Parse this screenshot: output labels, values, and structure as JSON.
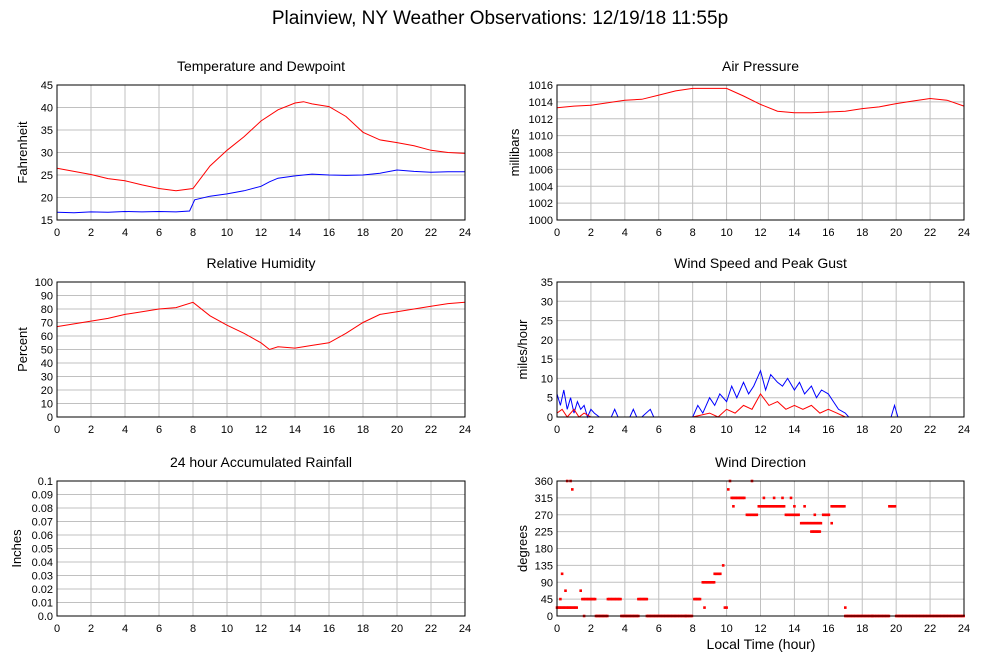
{
  "page": {
    "title": "Plainview, NY Weather Observations: 12/19/18 11:55p",
    "shared_xlabel": "Local Time (hour)"
  },
  "colors": {
    "red": "#ff0000",
    "blue": "#0000ff",
    "grid": "#c0c0c0",
    "frame": "#000000"
  },
  "chart_data": [
    {
      "id": "temperature",
      "type": "line",
      "title": "Temperature and Dewpoint",
      "xlabel": "",
      "ylabel": "Fahrenheit",
      "xlim": [
        0,
        24
      ],
      "ylim": [
        15,
        45
      ],
      "xticks": [
        0,
        2,
        4,
        6,
        8,
        10,
        12,
        14,
        16,
        18,
        20,
        22,
        24
      ],
      "yticks": [
        15,
        20,
        25,
        30,
        35,
        40,
        45
      ],
      "ytick_labels": [
        "15",
        "20",
        "25",
        "30",
        "35",
        "40",
        "45"
      ],
      "grid": true,
      "series": [
        {
          "color": "#ff0000",
          "x": [
            0,
            1,
            2,
            3,
            4,
            5,
            6,
            7,
            8,
            9,
            10,
            11,
            12,
            13,
            14,
            14.5,
            15,
            16,
            17,
            18,
            19,
            20,
            21,
            22,
            23,
            24
          ],
          "y": [
            26.5,
            25.8,
            25.1,
            24.2,
            23.7,
            22.8,
            22.0,
            21.5,
            22.0,
            27.0,
            30.5,
            33.5,
            37.0,
            39.5,
            41.0,
            41.3,
            40.8,
            40.2,
            38.0,
            34.5,
            32.8,
            32.2,
            31.5,
            30.5,
            30.0,
            29.8
          ]
        },
        {
          "color": "#0000ff",
          "x": [
            0,
            1,
            2,
            3,
            4,
            5,
            6,
            7,
            7.8,
            8.1,
            9,
            10,
            11,
            12,
            12.5,
            13,
            14,
            15,
            16,
            17,
            18,
            19,
            20,
            21,
            22,
            23,
            24
          ],
          "y": [
            16.7,
            16.6,
            16.8,
            16.7,
            16.9,
            16.8,
            16.9,
            16.8,
            17.0,
            19.5,
            20.3,
            20.8,
            21.5,
            22.5,
            23.5,
            24.3,
            24.8,
            25.2,
            25.0,
            24.9,
            25.0,
            25.4,
            26.1,
            25.8,
            25.6,
            25.7,
            25.7
          ]
        }
      ]
    },
    {
      "id": "pressure",
      "type": "line",
      "title": "Air Pressure",
      "xlabel": "",
      "ylabel": "millibars",
      "xlim": [
        0,
        24
      ],
      "ylim": [
        1000,
        1016
      ],
      "xticks": [
        0,
        2,
        4,
        6,
        8,
        10,
        12,
        14,
        16,
        18,
        20,
        22,
        24
      ],
      "yticks": [
        1000,
        1002,
        1004,
        1006,
        1008,
        1010,
        1012,
        1014,
        1016
      ],
      "ytick_labels": [
        "1000",
        "1002",
        "1004",
        "1006",
        "1008",
        "1010",
        "1012",
        "1014",
        "1016"
      ],
      "grid": true,
      "series": [
        {
          "color": "#ff0000",
          "x": [
            0,
            1,
            2,
            3,
            4,
            5,
            6,
            7,
            8,
            9,
            10,
            11,
            12,
            13,
            14,
            15,
            16,
            17,
            18,
            19,
            20,
            21,
            22,
            23,
            24
          ],
          "y": [
            1013.3,
            1013.5,
            1013.6,
            1013.9,
            1014.2,
            1014.3,
            1014.8,
            1015.3,
            1015.6,
            1015.6,
            1015.6,
            1014.7,
            1013.7,
            1012.9,
            1012.7,
            1012.7,
            1012.8,
            1012.9,
            1013.2,
            1013.4,
            1013.8,
            1014.1,
            1014.4,
            1014.2,
            1013.5
          ]
        }
      ]
    },
    {
      "id": "humidity",
      "type": "line",
      "title": "Relative Humidity",
      "xlabel": "",
      "ylabel": "Percent",
      "xlim": [
        0,
        24
      ],
      "ylim": [
        0,
        100
      ],
      "xticks": [
        0,
        2,
        4,
        6,
        8,
        10,
        12,
        14,
        16,
        18,
        20,
        22,
        24
      ],
      "yticks": [
        0,
        10,
        20,
        30,
        40,
        50,
        60,
        70,
        80,
        90,
        100
      ],
      "ytick_labels": [
        "0",
        "10",
        "20",
        "30",
        "40",
        "50",
        "60",
        "70",
        "80",
        "90",
        "100"
      ],
      "grid": true,
      "series": [
        {
          "color": "#ff0000",
          "x": [
            0,
            1,
            2,
            3,
            4,
            5,
            6,
            7,
            8,
            9,
            10,
            11,
            12,
            12.5,
            13,
            14,
            15,
            16,
            17,
            18,
            19,
            20,
            21,
            22,
            23,
            24
          ],
          "y": [
            67,
            69,
            71,
            73,
            76,
            78,
            80,
            81,
            85,
            75,
            68,
            62,
            55,
            50,
            52,
            51,
            53,
            55,
            62,
            70,
            76,
            78,
            80,
            82,
            84,
            85
          ]
        }
      ]
    },
    {
      "id": "wind",
      "type": "line",
      "title": "Wind Speed and Peak Gust",
      "xlabel": "",
      "ylabel": "miles/hour",
      "xlim": [
        0,
        24
      ],
      "ylim": [
        0,
        35
      ],
      "xticks": [
        0,
        2,
        4,
        6,
        8,
        10,
        12,
        14,
        16,
        18,
        20,
        22,
        24
      ],
      "yticks": [
        0,
        5,
        10,
        15,
        20,
        25,
        30,
        35
      ],
      "ytick_labels": [
        "0",
        "5",
        "10",
        "15",
        "20",
        "25",
        "30",
        "35"
      ],
      "grid": true,
      "series": [
        {
          "color": "#0000ff",
          "x": [
            0,
            0.2,
            0.4,
            0.6,
            0.8,
            1.0,
            1.2,
            1.4,
            1.6,
            1.8,
            2.0,
            2.2,
            2.5,
            3.2,
            3.4,
            3.6,
            4.3,
            4.5,
            4.7,
            5.0,
            5.5,
            5.7,
            6.0,
            8.0,
            8.3,
            8.6,
            9.0,
            9.3,
            9.6,
            10.0,
            10.3,
            10.6,
            11.0,
            11.3,
            11.6,
            12.0,
            12.3,
            12.6,
            13.0,
            13.3,
            13.6,
            14.0,
            14.3,
            14.6,
            15.0,
            15.3,
            15.6,
            16.0,
            16.3,
            16.6,
            17.0,
            17.2,
            19.7,
            19.9,
            20.1,
            24
          ],
          "y": [
            6,
            3,
            7,
            2,
            5,
            1,
            4,
            2,
            3,
            0,
            2,
            1,
            0,
            0,
            2,
            0,
            0,
            2,
            0,
            0,
            2,
            0,
            0,
            0,
            3,
            1,
            5,
            3,
            6,
            4,
            8,
            5,
            9,
            6,
            8,
            12,
            7,
            11,
            9,
            8,
            10,
            7,
            9,
            6,
            8,
            5,
            7,
            6,
            4,
            2,
            1,
            0,
            0,
            3,
            0,
            0
          ]
        },
        {
          "color": "#ff0000",
          "x": [
            0,
            0.3,
            0.6,
            1.0,
            1.3,
            1.6,
            2.0,
            8.0,
            9.0,
            9.5,
            10.0,
            10.5,
            11.0,
            11.5,
            12.0,
            12.5,
            13.0,
            13.5,
            14.0,
            14.5,
            15.0,
            15.5,
            16.0,
            16.5,
            17.0,
            24
          ],
          "y": [
            1,
            2,
            0,
            2,
            0,
            1,
            0,
            0,
            1,
            0,
            2,
            1,
            3,
            2,
            6,
            3,
            4,
            2,
            3,
            2,
            3,
            1,
            2,
            1,
            0,
            0
          ]
        }
      ]
    },
    {
      "id": "rainfall",
      "type": "line",
      "title": "24 hour Accumulated Rainfall",
      "xlabel": "",
      "ylabel": "Inches",
      "xlim": [
        0,
        24
      ],
      "ylim": [
        0,
        0.1
      ],
      "xticks": [
        0,
        2,
        4,
        6,
        8,
        10,
        12,
        14,
        16,
        18,
        20,
        22,
        24
      ],
      "yticks": [
        0,
        0.01,
        0.02,
        0.03,
        0.04,
        0.05,
        0.06,
        0.07,
        0.08,
        0.09,
        0.1
      ],
      "ytick_labels": [
        "0.0",
        "0.01",
        "0.02",
        "0.03",
        "0.04",
        "0.05",
        "0.06",
        "0.07",
        "0.08",
        "0.09",
        "0.1"
      ],
      "grid": true,
      "series": [
        {
          "color": "#ff0000",
          "x": [
            0,
            24
          ],
          "y": [
            0,
            0
          ]
        }
      ]
    },
    {
      "id": "direction",
      "type": "scatter",
      "title": "Wind Direction",
      "xlabel": "Local Time (hour)",
      "ylabel": "degrees",
      "xlim": [
        0,
        24
      ],
      "ylim": [
        0,
        360
      ],
      "xticks": [
        0,
        2,
        4,
        6,
        8,
        10,
        12,
        14,
        16,
        18,
        20,
        22,
        24
      ],
      "yticks": [
        0,
        45,
        90,
        135,
        180,
        225,
        270,
        315,
        360
      ],
      "ytick_labels": [
        "0",
        "45",
        "90",
        "135",
        "180",
        "225",
        "270",
        "315",
        "360"
      ],
      "grid": true,
      "series": [
        {
          "color": "#ff0000",
          "runs": [
            {
              "x0": 0.0,
              "x1": 1.2,
              "y": 22.5
            },
            {
              "x0": 1.5,
              "x1": 2.3,
              "y": 45
            },
            {
              "x0": 2.3,
              "x1": 3.0,
              "y": 0
            },
            {
              "x0": 3.0,
              "x1": 3.8,
              "y": 45
            },
            {
              "x0": 3.8,
              "x1": 4.8,
              "y": 0
            },
            {
              "x0": 4.8,
              "x1": 5.3,
              "y": 45
            },
            {
              "x0": 5.3,
              "x1": 8.0,
              "y": 0
            },
            {
              "x0": 8.1,
              "x1": 8.5,
              "y": 45
            },
            {
              "x0": 8.6,
              "x1": 9.3,
              "y": 90
            },
            {
              "x0": 9.3,
              "x1": 9.7,
              "y": 112.5
            },
            {
              "x0": 10.3,
              "x1": 11.1,
              "y": 315
            },
            {
              "x0": 11.2,
              "x1": 11.8,
              "y": 270
            },
            {
              "x0": 11.9,
              "x1": 13.4,
              "y": 292.5
            },
            {
              "x0": 13.5,
              "x1": 14.3,
              "y": 270
            },
            {
              "x0": 14.4,
              "x1": 15.6,
              "y": 247.5
            },
            {
              "x0": 15.0,
              "x1": 15.5,
              "y": 225
            },
            {
              "x0": 15.7,
              "x1": 16.1,
              "y": 270
            },
            {
              "x0": 16.2,
              "x1": 17.0,
              "y": 292.5
            },
            {
              "x0": 17.0,
              "x1": 19.6,
              "y": 0
            },
            {
              "x0": 19.6,
              "x1": 20.0,
              "y": 292.5
            },
            {
              "x0": 20.0,
              "x1": 24.0,
              "y": 0
            }
          ],
          "points": [
            {
              "x": 0.2,
              "y": 45
            },
            {
              "x": 0.3,
              "y": 112.5
            },
            {
              "x": 0.5,
              "y": 67.5
            },
            {
              "x": 0.6,
              "y": 360
            },
            {
              "x": 0.8,
              "y": 360
            },
            {
              "x": 0.9,
              "y": 337.5
            },
            {
              "x": 1.4,
              "y": 67.5
            },
            {
              "x": 1.6,
              "y": 0
            },
            {
              "x": 7.6,
              "y": 0
            },
            {
              "x": 8.7,
              "y": 22.5
            },
            {
              "x": 9.8,
              "y": 135
            },
            {
              "x": 9.9,
              "y": 22.5
            },
            {
              "x": 10.0,
              "y": 22.5
            },
            {
              "x": 10.1,
              "y": 337.5
            },
            {
              "x": 10.2,
              "y": 360
            },
            {
              "x": 10.4,
              "y": 292.5
            },
            {
              "x": 11.5,
              "y": 360
            },
            {
              "x": 12.2,
              "y": 315
            },
            {
              "x": 12.8,
              "y": 315
            },
            {
              "x": 13.3,
              "y": 315
            },
            {
              "x": 13.8,
              "y": 315
            },
            {
              "x": 14.0,
              "y": 292.5
            },
            {
              "x": 14.6,
              "y": 292.5
            },
            {
              "x": 15.2,
              "y": 270
            },
            {
              "x": 16.2,
              "y": 247.5
            },
            {
              "x": 17.0,
              "y": 22.5
            },
            {
              "x": 18.6,
              "y": 0
            }
          ]
        }
      ]
    }
  ]
}
